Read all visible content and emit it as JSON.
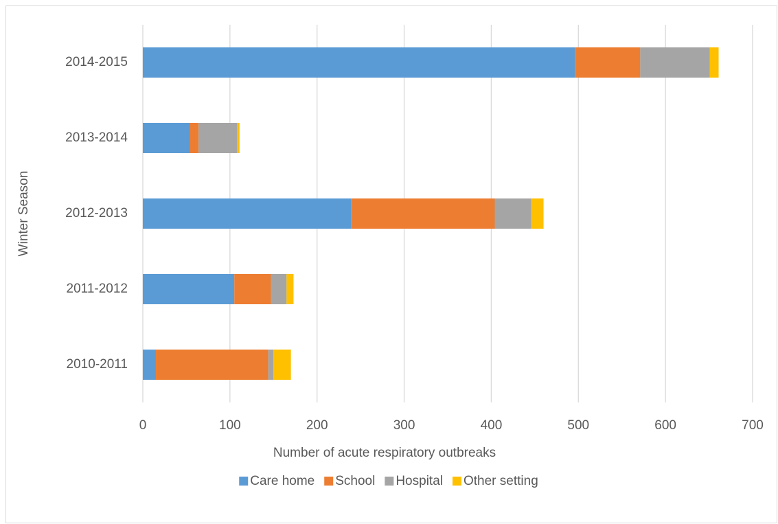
{
  "chart_data": {
    "type": "stacked-bar-horizontal",
    "x_label": "Number of acute respiratory outbreaks",
    "y_label": "Winter Season",
    "categories": [
      "2010-2011",
      "2011-2012",
      "2012-2013",
      "2013-2014",
      "2014-2015"
    ],
    "series": [
      {
        "name": "Care home",
        "color": "#5b9bd5",
        "values": [
          15,
          105,
          239,
          54,
          496
        ]
      },
      {
        "name": "School",
        "color": "#ed7d31",
        "values": [
          129,
          42,
          165,
          10,
          75
        ]
      },
      {
        "name": "Hospital",
        "color": "#a5a5a5",
        "values": [
          6,
          18,
          42,
          44,
          80
        ]
      },
      {
        "name": "Other setting",
        "color": "#ffc000",
        "values": [
          20,
          8,
          14,
          3,
          10
        ]
      }
    ],
    "xlim": [
      0,
      700
    ],
    "xticks": [
      0,
      100,
      200,
      300,
      400,
      500,
      600,
      700
    ],
    "grid": true,
    "legend": "bottom"
  }
}
